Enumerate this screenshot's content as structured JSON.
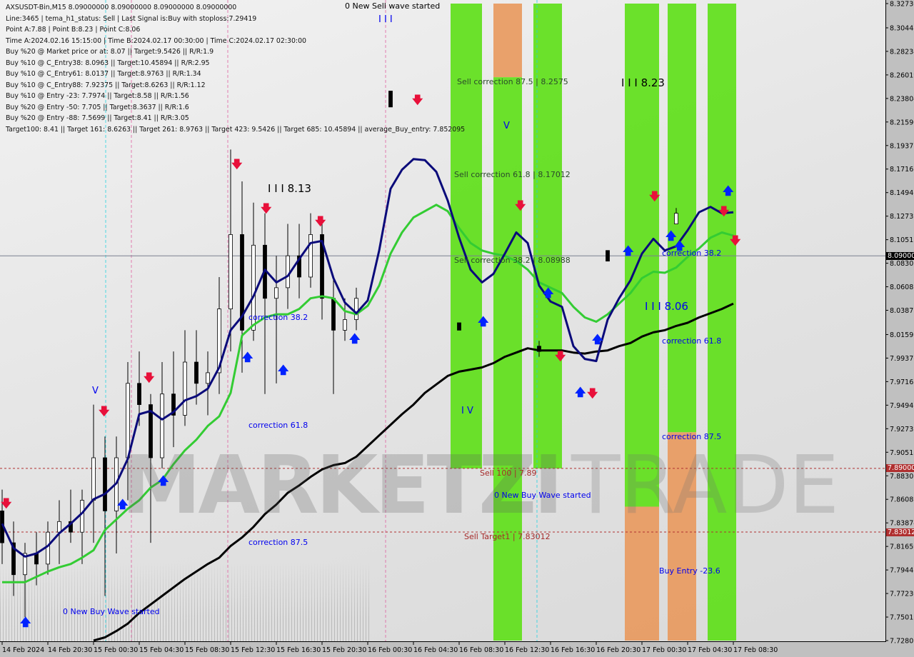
{
  "info": {
    "lines": [
      "AXSUSDT-Bin,M15  8.09000000 8.09000000 8.09000000 8.09000000",
      "Line:3465 | tema_h1_status: Sell | Last Signal is:Buy with stoploss:7.29419",
      "Point A:7.88 | Point B:8.23 | Point C:8.06",
      "Time A:2024.02.16 15:15:00 | Time B:2024.02.17 00:30:00 | Time C:2024.02.17 02:30:00",
      "Buy %20 @ Market price or at: 8.07 || Target:9.5426 || R/R:1.9",
      "Buy %10 @ C_Entry38: 8.0963 || Target:10.45894 || R/R:2.95",
      "Buy %10 @ C_Entry61: 8.0137 || Target:8.9763 || R/R:1.34",
      "Buy %10 @ C_Entry88: 7.92375 || Target:8.6263 || R/R:1.12",
      "Buy %10 @ Entry -23: 7.7974 || Target:8.58 || R/R:1.56",
      "Buy %20 @ Entry -50: 7.705 || Target:8.3637 || R/R:1.6",
      "Buy %20 @ Entry -88: 7.5699 || Target:8.41 || R/R:3.05",
      "Target100: 8.41 || Target 161: 8.6263 || Target 261: 8.9763 || Target 423: 9.5426 || Target 685: 10.45894 || average_Buy_entry: 7.852095"
    ]
  },
  "annotations": {
    "sell_wave": "0 New Sell wave started",
    "wave_iii_top": "I I I",
    "wave_iii_813": "I I I 8.13",
    "wave_v_left": "V",
    "corr382_left": "correction 38.2",
    "corr618_left": "correction 61.8",
    "corr875_left": "correction 87.5",
    "buy_wave_left": "0 New Buy Wave started",
    "sell_corr875": "Sell correction 87.5 | 8.2575",
    "wave_v_mid": "V",
    "sell_corr618": "Sell correction 61.8 | 8.17012",
    "sell_corr382": "Sell correction 38.2 | 8.08988",
    "wave_iv": "I V",
    "sell100": "Sell 100 | 7.89",
    "buy_wave_mid": "0 New Buy Wave started",
    "sell_target1": "Sell Target1 | 7.83012",
    "wave_iii_823": "I I I 8.23",
    "wave_iii_806": "I I I 8.06",
    "corr382_right": "correction 38.2",
    "corr618_right": "correction 61.8",
    "corr875_right": "correction 87.5",
    "buy_entry": "Buy Entry -23.6"
  },
  "watermark": "MARKETZI TRADE",
  "colors": {
    "tema": "#0a0a7a",
    "ma_fast": "#33cc33",
    "ma_slow": "#000000",
    "band_green": "#5fe01a",
    "band_orange": "#e89a60",
    "buy_arrow": "#0022ff",
    "sell_arrow": "#e8103a",
    "level_line": "#a52a2a"
  },
  "chart_data": {
    "type": "candlestick",
    "symbol": "AXSUSDT-Bin",
    "timeframe": "M15",
    "ylim": [
      7.72801,
      8.3273
    ],
    "grid": false,
    "y_ticks": [
      "8.32730",
      "8.30448",
      "8.28234",
      "8.26019",
      "8.23804",
      "8.21590",
      "8.19375",
      "8.17161",
      "8.14946",
      "8.12731",
      "8.10517",
      "8.08302",
      "8.06087",
      "8.03873",
      "8.01591",
      "7.99376",
      "7.97162",
      "7.94947",
      "7.92733",
      "7.90518",
      "7.88303",
      "7.86089",
      "7.83874",
      "7.81659",
      "7.79445",
      "7.77230",
      "7.75015",
      "7.72801"
    ],
    "x_ticks": [
      "14 Feb 2024",
      "14 Feb 20:30",
      "15 Feb 00:30",
      "15 Feb 04:30",
      "15 Feb 08:30",
      "15 Feb 12:30",
      "15 Feb 16:30",
      "15 Feb 20:30",
      "16 Feb 00:30",
      "16 Feb 04:30",
      "16 Feb 08:30",
      "16 Feb 12:30",
      "16 Feb 16:30",
      "16 Feb 20:30",
      "17 Feb 00:30",
      "17 Feb 04:30",
      "17 Feb 08:30"
    ],
    "price_tags": [
      {
        "label": "8.09000",
        "price": 8.09,
        "color": "#000000",
        "style": "solid"
      },
      {
        "label": "7.89000",
        "price": 7.89,
        "color": "#b03030",
        "style": "dashed"
      },
      {
        "label": "7.83012",
        "price": 7.83012,
        "color": "#b03030",
        "style": "dashed"
      }
    ],
    "times": [
      "14 Feb 16:30",
      "14 Feb 17:30",
      "14 Feb 18:30",
      "14 Feb 19:30",
      "14 Feb 20:30",
      "14 Feb 21:30",
      "14 Feb 22:30",
      "14 Feb 23:30",
      "15 Feb 00:30",
      "15 Feb 01:30",
      "15 Feb 02:30",
      "15 Feb 03:30",
      "15 Feb 04:30",
      "15 Feb 05:30",
      "15 Feb 06:30",
      "15 Feb 07:30",
      "15 Feb 08:30",
      "15 Feb 09:30",
      "15 Feb 10:30",
      "15 Feb 11:30",
      "15 Feb 12:30",
      "15 Feb 13:30",
      "15 Feb 14:30",
      "15 Feb 15:30",
      "15 Feb 16:30",
      "15 Feb 17:30",
      "15 Feb 18:30",
      "15 Feb 19:30",
      "15 Feb 20:30",
      "15 Feb 21:30",
      "15 Feb 22:30",
      "15 Feb 23:30",
      "16 Feb 00:30",
      "16 Feb 01:30",
      "16 Feb 02:30",
      "16 Feb 03:30",
      "16 Feb 04:30",
      "16 Feb 05:30",
      "16 Feb 06:30",
      "16 Feb 07:30",
      "16 Feb 08:30",
      "16 Feb 09:30",
      "16 Feb 10:30",
      "16 Feb 11:30",
      "16 Feb 12:30",
      "16 Feb 13:30",
      "16 Feb 14:30",
      "16 Feb 15:30",
      "16 Feb 16:30",
      "16 Feb 17:30",
      "16 Feb 18:30",
      "16 Feb 19:30",
      "16 Feb 20:30",
      "16 Feb 21:30",
      "16 Feb 22:30",
      "16 Feb 23:30",
      "17 Feb 00:30",
      "17 Feb 01:30",
      "17 Feb 02:30",
      "17 Feb 03:30",
      "17 Feb 04:30",
      "17 Feb 05:30",
      "17 Feb 06:30",
      "17 Feb 07:30",
      "17 Feb 08:30"
    ],
    "series": [
      {
        "key": "tema",
        "values": [
          7.838,
          7.815,
          7.807,
          7.81,
          7.817,
          7.829,
          7.838,
          7.848,
          7.861,
          7.866,
          7.876,
          7.899,
          7.941,
          7.944,
          7.936,
          7.943,
          7.954,
          7.958,
          7.965,
          7.985,
          8.02,
          8.033,
          8.052,
          8.077,
          8.065,
          8.071,
          8.087,
          8.102,
          8.104,
          8.069,
          8.046,
          8.036,
          8.048,
          8.095,
          8.153,
          8.171,
          8.181,
          8.18,
          8.169,
          8.142,
          8.107,
          8.077,
          8.065,
          8.073,
          8.092,
          8.112,
          8.102,
          8.062,
          8.047,
          8.042,
          8.005,
          7.993,
          7.991,
          8.03,
          8.05,
          8.067,
          8.092,
          8.106,
          8.095,
          8.099,
          8.114,
          8.131,
          8.136,
          8.13,
          8.131
        ]
      },
      {
        "key": "ma_fast",
        "values": [
          7.783,
          7.783,
          7.783,
          7.788,
          7.793,
          7.797,
          7.8,
          7.806,
          7.813,
          7.832,
          7.842,
          7.852,
          7.86,
          7.872,
          7.879,
          7.894,
          7.907,
          7.917,
          7.93,
          7.939,
          7.961,
          8.015,
          8.025,
          8.032,
          8.035,
          8.035,
          8.04,
          8.05,
          8.052,
          8.05,
          8.038,
          8.035,
          8.043,
          8.062,
          8.092,
          8.112,
          8.126,
          8.132,
          8.138,
          8.132,
          8.116,
          8.102,
          8.095,
          8.092,
          8.09,
          8.085,
          8.077,
          8.065,
          8.06,
          8.055,
          8.042,
          8.032,
          8.028,
          8.035,
          8.045,
          8.055,
          8.069,
          8.075,
          8.074,
          8.079,
          8.089,
          8.097,
          8.107,
          8.112,
          8.109
        ]
      },
      {
        "key": "ma_slow",
        "values": [
          null,
          null,
          null,
          null,
          null,
          null,
          null,
          null,
          7.728,
          7.731,
          7.737,
          7.744,
          7.754,
          7.762,
          7.77,
          7.778,
          7.786,
          7.793,
          7.8,
          7.806,
          7.817,
          7.825,
          7.835,
          7.847,
          7.856,
          7.867,
          7.874,
          7.882,
          7.889,
          7.893,
          7.895,
          7.901,
          7.911,
          7.921,
          7.931,
          7.941,
          7.95,
          7.961,
          7.969,
          7.977,
          7.981,
          7.983,
          7.985,
          7.989,
          7.995,
          7.999,
          8.003,
          8.001,
          8.001,
          8.001,
          7.999,
          7.998,
          8.0,
          8.001,
          8.005,
          8.008,
          8.014,
          8.018,
          8.02,
          8.024,
          8.027,
          8.032,
          8.036,
          8.04,
          8.045
        ]
      }
    ],
    "candles": [
      [
        "14 Feb 16:30",
        7.85,
        7.87,
        7.8,
        7.82
      ],
      [
        "14 Feb 17:30",
        7.82,
        7.84,
        7.77,
        7.79
      ],
      [
        "14 Feb 18:30",
        7.79,
        7.82,
        7.75,
        7.81
      ],
      [
        "14 Feb 19:30",
        7.81,
        7.83,
        7.78,
        7.8
      ],
      [
        "14 Feb 20:30",
        7.8,
        7.84,
        7.79,
        7.83
      ],
      [
        "14 Feb 21:30",
        7.83,
        7.86,
        7.8,
        7.84
      ],
      [
        "14 Feb 22:30",
        7.84,
        7.87,
        7.82,
        7.83
      ],
      [
        "14 Feb 23:30",
        7.83,
        7.87,
        7.8,
        7.86
      ],
      [
        "15 Feb 00:30",
        7.86,
        7.95,
        7.82,
        7.9
      ],
      [
        "15 Feb 01:30",
        7.9,
        7.92,
        7.77,
        7.85
      ],
      [
        "15 Feb 02:30",
        7.85,
        7.92,
        7.81,
        7.9
      ],
      [
        "15 Feb 03:30",
        7.9,
        7.99,
        7.86,
        7.97
      ],
      [
        "15 Feb 04:30",
        7.97,
        8.0,
        7.93,
        7.95
      ],
      [
        "15 Feb 05:30",
        7.95,
        7.96,
        7.82,
        7.9
      ],
      [
        "15 Feb 06:30",
        7.9,
        7.99,
        7.89,
        7.96
      ],
      [
        "15 Feb 07:30",
        7.96,
        8.0,
        7.91,
        7.94
      ],
      [
        "15 Feb 08:30",
        7.94,
        8.02,
        7.93,
        7.99
      ],
      [
        "15 Feb 09:30",
        7.99,
        8.02,
        7.95,
        7.97
      ],
      [
        "15 Feb 10:30",
        7.97,
        8.0,
        7.94,
        7.98
      ],
      [
        "15 Feb 11:30",
        7.98,
        8.07,
        7.96,
        8.04
      ],
      [
        "15 Feb 12:30",
        8.04,
        8.19,
        8.0,
        8.11
      ],
      [
        "15 Feb 13:30",
        8.11,
        8.16,
        7.98,
        8.02
      ],
      [
        "15 Feb 14:30",
        8.02,
        8.14,
        8.01,
        8.1
      ],
      [
        "15 Feb 15:30",
        8.1,
        8.13,
        7.96,
        8.05
      ],
      [
        "15 Feb 16:30",
        8.05,
        8.09,
        7.97,
        8.06
      ],
      [
        "15 Feb 17:30",
        8.06,
        8.12,
        8.04,
        8.09
      ],
      [
        "15 Feb 18:30",
        8.09,
        8.12,
        8.05,
        8.07
      ],
      [
        "15 Feb 19:30",
        8.07,
        8.13,
        8.06,
        8.11
      ],
      [
        "15 Feb 20:30",
        8.11,
        8.12,
        8.03,
        8.05
      ],
      [
        "15 Feb 21:30",
        8.05,
        8.07,
        7.96,
        8.02
      ],
      [
        "15 Feb 22:30",
        8.02,
        8.05,
        8.01,
        8.03
      ],
      [
        "15 Feb 23:30",
        8.03,
        8.06,
        8.02,
        8.05
      ],
      [
        "16 Feb 02:30",
        8.245,
        8.245,
        8.23,
        8.23
      ],
      [
        "16 Feb 08:30",
        8.027,
        8.027,
        8.02,
        8.02
      ],
      [
        "16 Feb 15:30",
        8.005,
        8.01,
        7.995,
        8.0
      ],
      [
        "16 Feb 21:30",
        8.095,
        8.095,
        8.085,
        8.085
      ],
      [
        "17 Feb 03:30",
        8.12,
        8.135,
        8.12,
        8.13
      ]
    ],
    "bands": [
      {
        "start": "16 Feb 07:45",
        "end": "16 Feb 10:30",
        "segments": [
          {
            "color": "green",
            "from": 8.3273,
            "to": 7.89
          }
        ]
      },
      {
        "start": "16 Feb 11:30",
        "end": "16 Feb 14:00",
        "segments": [
          {
            "color": "orange",
            "from": 8.3273,
            "to": 8.258
          },
          {
            "color": "green",
            "from": 8.258,
            "to": 7.72801
          }
        ]
      },
      {
        "start": "16 Feb 15:00",
        "end": "16 Feb 17:30",
        "segments": [
          {
            "color": "green",
            "from": 8.3273,
            "to": 7.89
          }
        ]
      },
      {
        "start": "16 Feb 23:00",
        "end": "17 Feb 02:00",
        "segments": [
          {
            "color": "green",
            "from": 8.3273,
            "to": 7.854
          },
          {
            "color": "orange",
            "from": 7.854,
            "to": 7.72801
          }
        ]
      },
      {
        "start": "17 Feb 02:45",
        "end": "17 Feb 05:15",
        "segments": [
          {
            "color": "green",
            "from": 8.3273,
            "to": 7.924
          },
          {
            "color": "orange",
            "from": 7.924,
            "to": 7.72801
          }
        ]
      },
      {
        "start": "17 Feb 06:15",
        "end": "17 Feb 08:45",
        "segments": [
          {
            "color": "green",
            "from": 8.3273,
            "to": 7.72801
          }
        ]
      }
    ]
  }
}
